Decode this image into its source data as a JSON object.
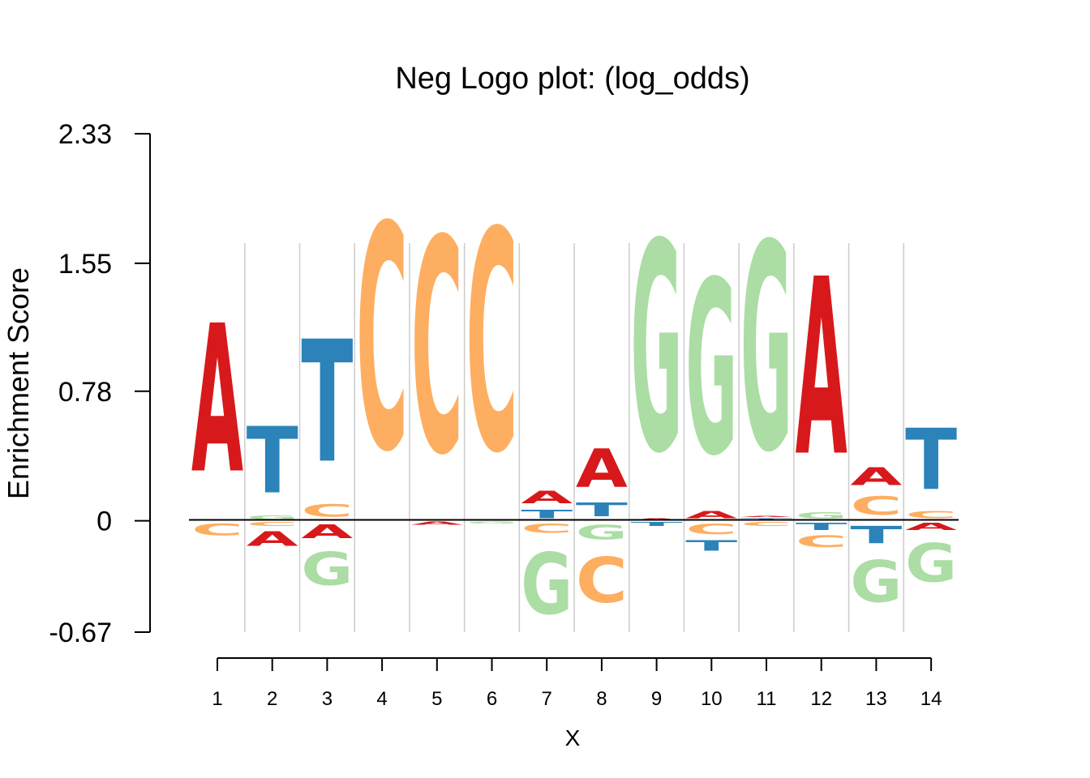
{
  "chart_data": {
    "type": "logo",
    "title": "Neg Logo plot: (log_odds)",
    "xlabel": "X",
    "ylabel": "Enrichment Score",
    "ylim": [
      -0.67,
      2.33
    ],
    "ytick_labels": [
      "2.33",
      "1.55",
      "0.78",
      "0",
      "-0.67"
    ],
    "ytick_values": [
      2.33,
      1.55,
      0.78,
      0,
      -0.67
    ],
    "xtick_labels": [
      "1",
      "2",
      "3",
      "4",
      "5",
      "6",
      "7",
      "8",
      "9",
      "10",
      "11",
      "12",
      "13",
      "14"
    ],
    "colors": {
      "A": "#d7191c",
      "C": "#fdae61",
      "G": "#abdda4",
      "T": "#2b83ba"
    },
    "positions": [
      {
        "pos": 1,
        "pos_letters": [
          [
            "C",
            0.01
          ],
          [
            "A",
            1.43
          ]
        ],
        "neg_letters": [
          [
            "C",
            -0.11
          ]
        ]
      },
      {
        "pos": 2,
        "pos_letters": [
          [
            "G",
            0.04
          ],
          [
            "T",
            0.64
          ]
        ],
        "neg_letters": [
          [
            "C",
            -0.04
          ],
          [
            "A",
            -0.14
          ]
        ]
      },
      {
        "pos": 3,
        "pos_letters": [
          [
            "C",
            0.12
          ],
          [
            "T",
            1.18
          ]
        ],
        "neg_letters": [
          [
            "A",
            -0.13
          ],
          [
            "G",
            -0.32
          ]
        ]
      },
      {
        "pos": 4,
        "pos_letters": [
          [
            "C",
            2.17
          ]
        ],
        "neg_letters": []
      },
      {
        "pos": 5,
        "pos_letters": [
          [
            "C",
            2.07
          ]
        ],
        "neg_letters": [
          [
            "A",
            -0.03
          ]
        ]
      },
      {
        "pos": 6,
        "pos_letters": [
          [
            "C",
            2.13
          ]
        ],
        "neg_letters": [
          [
            "G",
            -0.02
          ]
        ]
      },
      {
        "pos": 7,
        "pos_letters": [
          [
            "T",
            0.08
          ],
          [
            "A",
            0.12
          ]
        ],
        "neg_letters": [
          [
            "C",
            -0.09
          ],
          [
            "G",
            -0.59
          ]
        ]
      },
      {
        "pos": 8,
        "pos_letters": [
          [
            "T",
            0.13
          ],
          [
            "A",
            0.37
          ]
        ],
        "neg_letters": [
          [
            "G",
            -0.14
          ],
          [
            "C",
            -0.44
          ]
        ]
      },
      {
        "pos": 9,
        "pos_letters": [
          [
            "A",
            0.02
          ],
          [
            "G",
            2.02
          ]
        ],
        "neg_letters": [
          [
            "T",
            -0.04
          ]
        ]
      },
      {
        "pos": 10,
        "pos_letters": [
          [
            "A",
            0.07
          ],
          [
            "G",
            1.68
          ]
        ],
        "neg_letters": [
          [
            "C",
            -0.1
          ],
          [
            "T",
            -0.1
          ]
        ]
      },
      {
        "pos": 11,
        "pos_letters": [
          [
            "T",
            0.02
          ],
          [
            "A",
            0.01
          ],
          [
            "G",
            2.0
          ]
        ],
        "neg_letters": [
          [
            "C",
            -0.04
          ]
        ]
      },
      {
        "pos": 12,
        "pos_letters": [
          [
            "G",
            0.06
          ],
          [
            "A",
            1.71
          ]
        ],
        "neg_letters": [
          [
            "T",
            -0.07
          ],
          [
            "C",
            -0.11
          ]
        ]
      },
      {
        "pos": 13,
        "pos_letters": [
          [
            "C",
            0.18
          ],
          [
            "A",
            0.17
          ]
        ],
        "neg_letters": [
          [
            "T",
            -0.17
          ],
          [
            "G",
            -0.4
          ]
        ]
      },
      {
        "pos": 14,
        "pos_letters": [
          [
            "C",
            0.07
          ],
          [
            "T",
            0.59
          ]
        ],
        "neg_letters": [
          [
            "A",
            -0.07
          ],
          [
            "G",
            -0.37
          ]
        ]
      }
    ]
  }
}
